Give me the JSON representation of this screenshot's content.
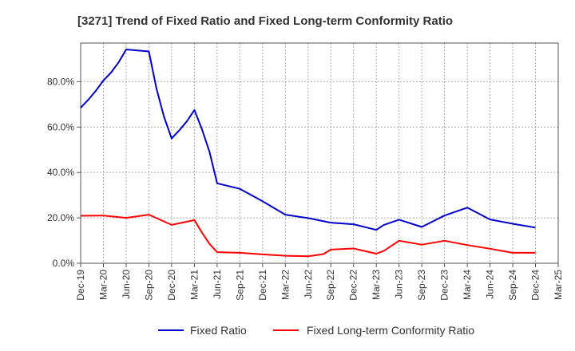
{
  "chart_data": {
    "type": "line",
    "title": "[3271]  Trend of Fixed Ratio and Fixed Long-term Conformity Ratio",
    "xlabel": "",
    "ylabel": "",
    "x_ticks": [
      "Dec-19",
      "Mar-20",
      "Jun-20",
      "Sep-20",
      "Dec-20",
      "Mar-21",
      "Jun-21",
      "Sep-21",
      "Dec-21",
      "Mar-22",
      "Jun-22",
      "Sep-22",
      "Dec-22",
      "Mar-23",
      "Jun-23",
      "Sep-23",
      "Dec-23",
      "Mar-24",
      "Jun-24",
      "Sep-24",
      "Dec-24",
      "Mar-25"
    ],
    "y_ticks": [
      "0.0%",
      "20.0%",
      "40.0%",
      "60.0%",
      "80.0%"
    ],
    "y_tick_values": [
      0,
      20,
      40,
      60,
      80
    ],
    "ylim": [
      0,
      97
    ],
    "grid": true,
    "legend_position": "bottom",
    "series": [
      {
        "name": "Fixed Ratio",
        "color": "#0000cc",
        "x": [
          "2019-12",
          "2020-01",
          "2020-02",
          "2020-03",
          "2020-04",
          "2020-05",
          "2020-06",
          "2020-09",
          "2020-10",
          "2020-11",
          "2020-12",
          "2021-01",
          "2021-02",
          "2021-03",
          "2021-04",
          "2021-05",
          "2021-06",
          "2021-09",
          "2021-12",
          "2022-03",
          "2022-06",
          "2022-09",
          "2022-12",
          "2023-03",
          "2023-04",
          "2023-06",
          "2023-09",
          "2023-12",
          "2024-03",
          "2024-06",
          "2024-09",
          "2024-12"
        ],
        "values": [
          68.5,
          72.0,
          76.0,
          80.5,
          84.0,
          88.5,
          94.2,
          93.3,
          77.0,
          64.5,
          55.0,
          58.5,
          62.5,
          67.5,
          59.0,
          49.0,
          35.2,
          32.8,
          27.3,
          21.4,
          19.9,
          17.9,
          17.2,
          14.7,
          16.9,
          19.2,
          16.0,
          21.0,
          24.5,
          19.3,
          17.4,
          15.7
        ]
      },
      {
        "name": "Fixed Long-term Conformity Ratio",
        "color": "#ff0000",
        "x": [
          "2019-12",
          "2020-03",
          "2020-06",
          "2020-09",
          "2020-12",
          "2021-03",
          "2021-04",
          "2021-05",
          "2021-06",
          "2021-09",
          "2021-12",
          "2022-03",
          "2022-06",
          "2022-08",
          "2022-09",
          "2022-12",
          "2023-03",
          "2023-04",
          "2023-06",
          "2023-09",
          "2023-12",
          "2024-03",
          "2024-06",
          "2024-09",
          "2024-12"
        ],
        "values": [
          20.9,
          21.0,
          20.0,
          21.4,
          16.9,
          19.0,
          13.5,
          8.5,
          4.9,
          4.6,
          3.9,
          3.3,
          3.1,
          4.0,
          6.0,
          6.5,
          4.2,
          5.5,
          9.9,
          8.2,
          9.9,
          8.0,
          6.4,
          4.6,
          4.6
        ]
      }
    ]
  }
}
